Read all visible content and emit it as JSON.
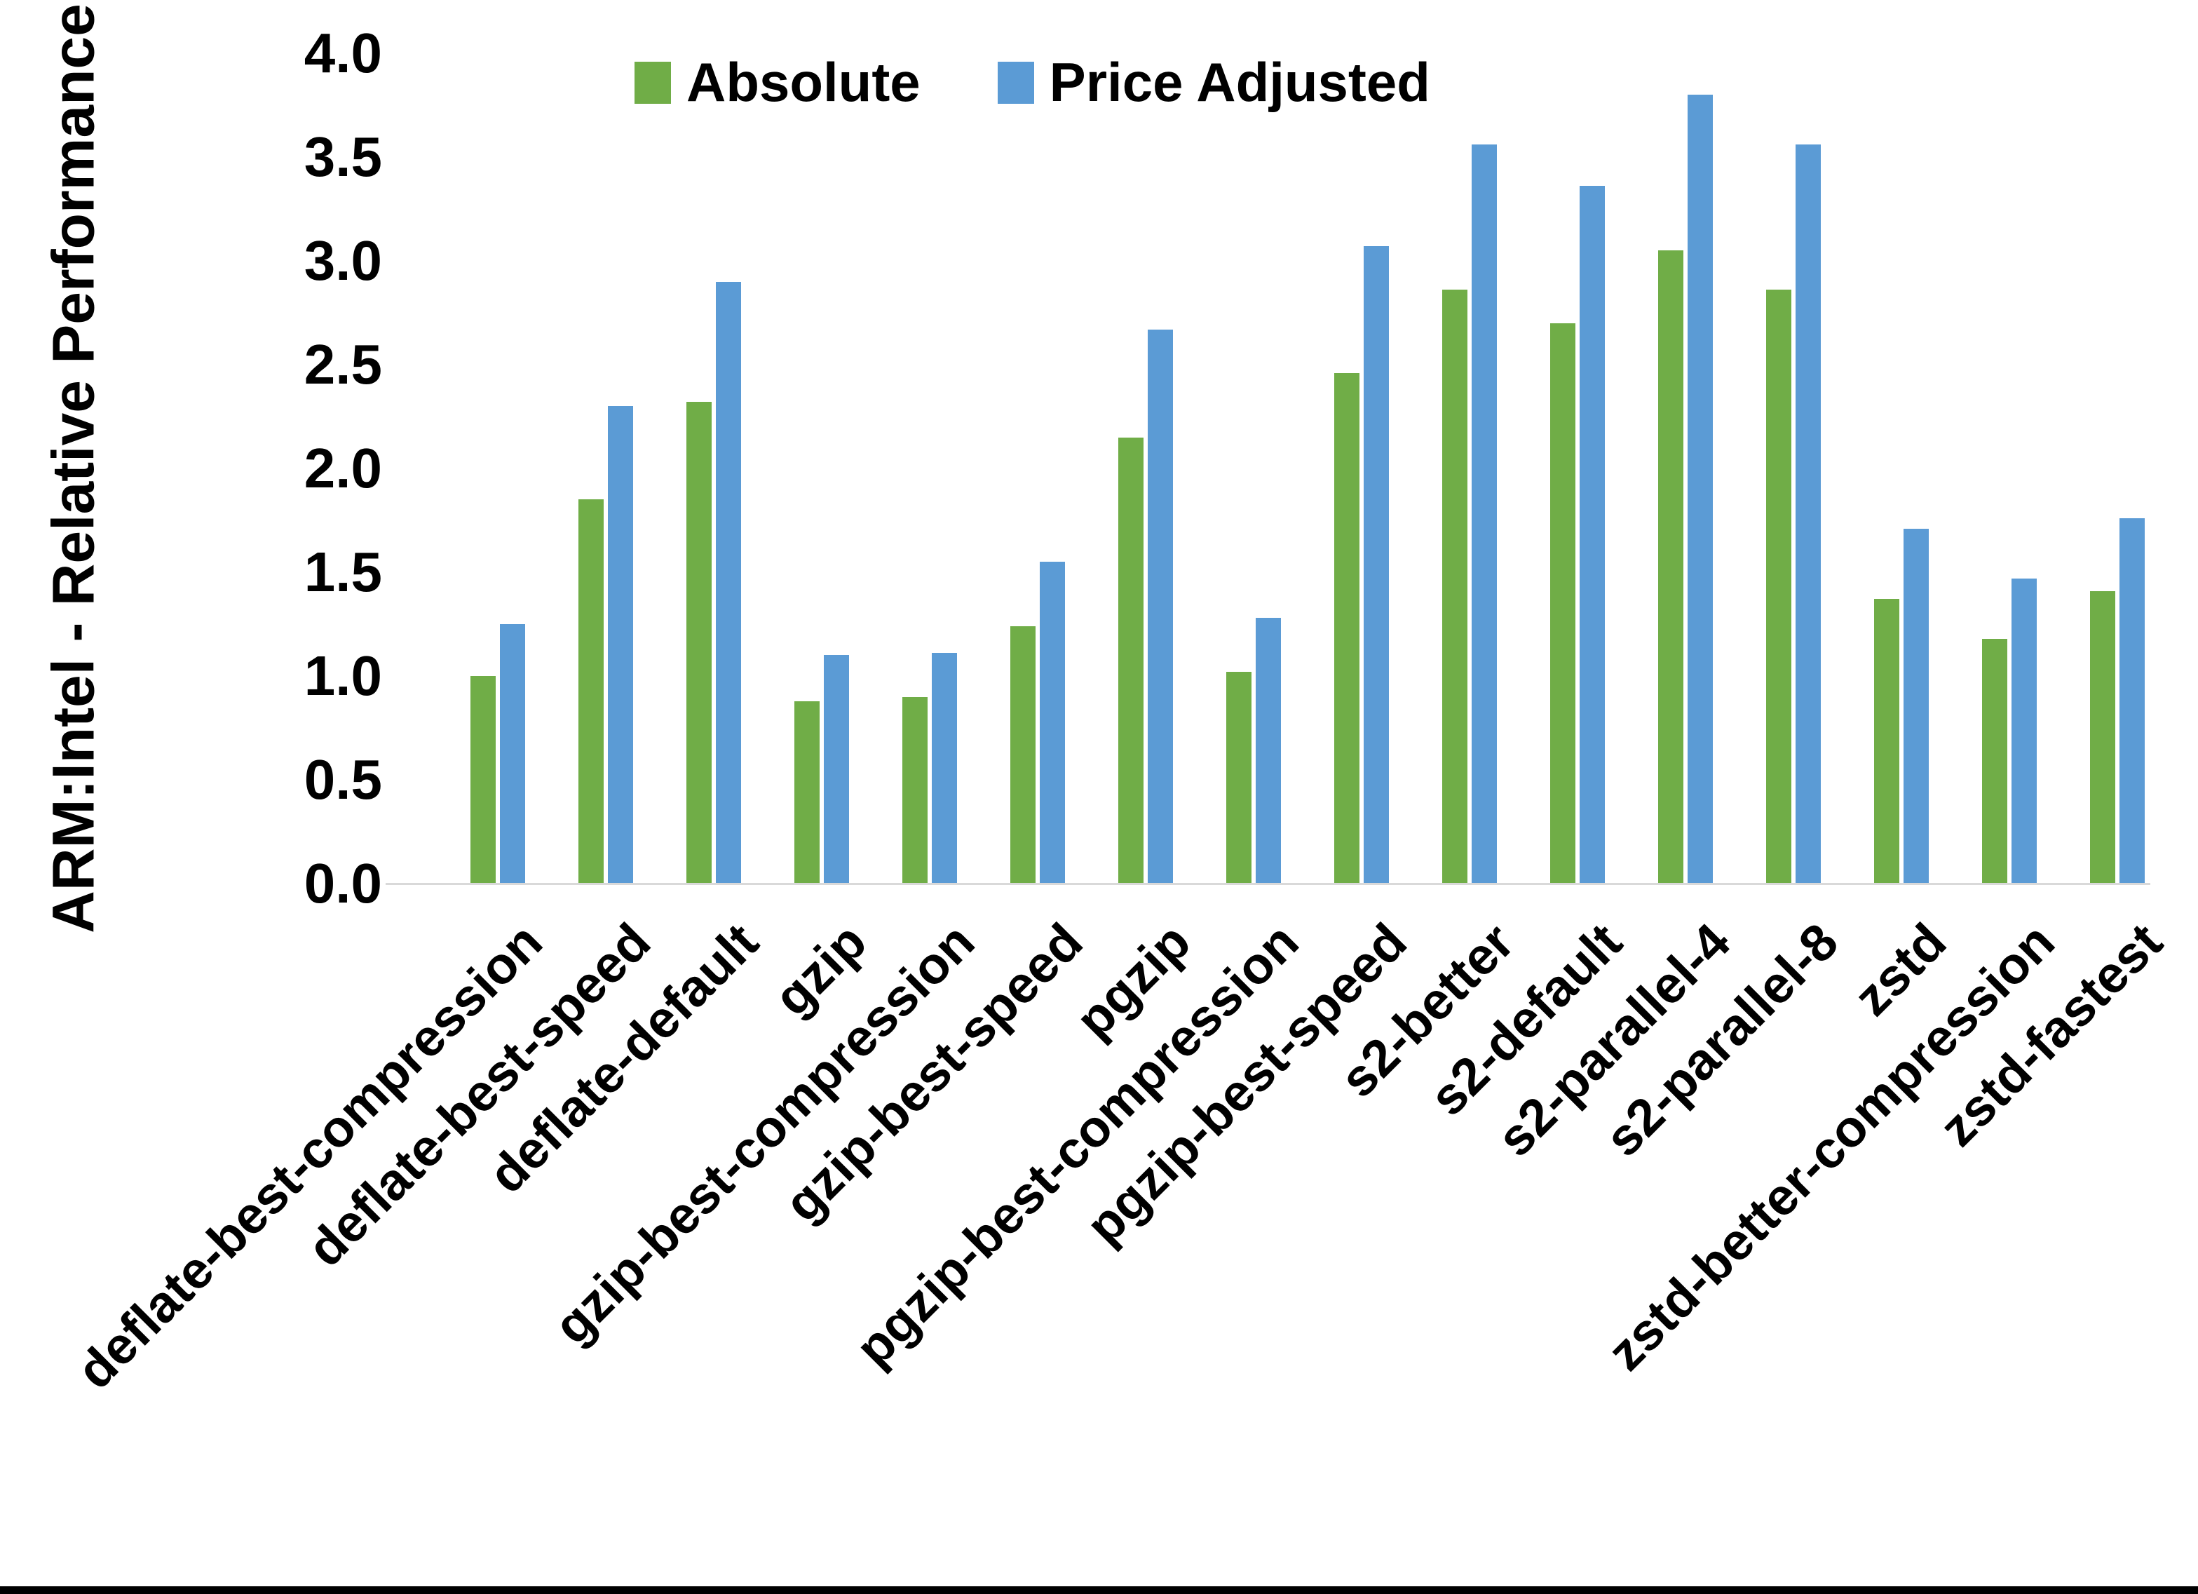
{
  "chart_data": {
    "type": "bar",
    "title": "",
    "xlabel": "",
    "ylabel": "ARM:Intel - Relative Performance",
    "ylim": [
      0.0,
      4.0
    ],
    "ytick_step": 0.5,
    "ytick_labels": [
      "0.0",
      "0.5",
      "1.0",
      "1.5",
      "2.0",
      "2.5",
      "3.0",
      "3.5",
      "4.0"
    ],
    "grid": false,
    "legend_position": "top-center",
    "categories": [
      "deflate-best-compression",
      "deflate-best-speed",
      "deflate-default",
      "gzip",
      "gzip-best-compression",
      "gzip-best-speed",
      "pgzip",
      "pgzip-best-compression",
      "pgzip-best-speed",
      "s2-better",
      "s2-default",
      "s2-parallel-4",
      "s2-parallel-8",
      "zstd",
      "zstd-better-compression",
      "zstd-fastest"
    ],
    "series": [
      {
        "name": "Absolute",
        "color": "#70AD47",
        "values": [
          1.0,
          1.85,
          2.32,
          0.88,
          0.9,
          1.24,
          2.15,
          1.02,
          2.46,
          2.86,
          2.7,
          3.05,
          2.86,
          1.37,
          1.18,
          1.41
        ]
      },
      {
        "name": "Price Adjusted",
        "color": "#5B9BD5",
        "values": [
          1.25,
          2.3,
          2.9,
          1.1,
          1.11,
          1.55,
          2.67,
          1.28,
          3.07,
          3.56,
          3.36,
          3.8,
          3.56,
          1.71,
          1.47,
          1.76
        ]
      }
    ]
  },
  "colors": {
    "axis_line": "#D9D9D9",
    "text": "#000000",
    "background": "#FFFFFF",
    "bottom_bar": "#000000"
  }
}
